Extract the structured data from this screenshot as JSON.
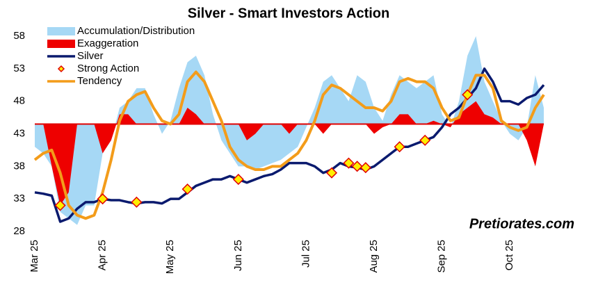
{
  "chart_data": {
    "type": "line",
    "title": "Silver - Smart Investors Action",
    "watermark": "Pretiorates.com",
    "categories": [
      "Mar 25",
      null,
      null,
      null,
      null,
      null,
      null,
      null,
      "Apr 25",
      null,
      null,
      null,
      null,
      null,
      null,
      null,
      "May 25",
      null,
      null,
      null,
      null,
      null,
      null,
      null,
      "Jun 25",
      null,
      null,
      null,
      null,
      null,
      null,
      null,
      "Jul 25",
      null,
      null,
      null,
      null,
      null,
      null,
      null,
      "Aug 25",
      null,
      null,
      null,
      null,
      null,
      null,
      null,
      "Sep 25",
      null,
      null,
      null,
      null,
      null,
      null,
      null,
      "Oct 25",
      null,
      null,
      null,
      null
    ],
    "ylim": [
      28,
      58
    ],
    "yticks": [
      28,
      33,
      38,
      43,
      48,
      53,
      58
    ],
    "reference_line": 44.5,
    "reference_color": "#e00000",
    "series": [
      {
        "name": "Accumulation/Distribution",
        "kind": "area",
        "color": "#a6d8f5",
        "values": [
          41,
          40,
          38,
          31,
          30,
          29,
          32,
          32,
          40,
          42,
          47,
          48,
          50,
          50,
          46,
          43,
          45,
          50,
          54,
          55,
          52,
          46,
          42,
          40,
          38,
          38,
          37.5,
          38,
          38.5,
          39,
          40,
          41,
          44,
          47,
          51,
          52,
          50,
          48,
          52,
          51,
          47,
          45,
          49,
          52,
          51,
          50,
          51,
          52,
          46,
          44,
          48,
          55,
          58,
          51,
          48,
          45,
          43,
          42,
          44,
          52,
          47
        ]
      },
      {
        "name": "Exaggeration",
        "kind": "area",
        "color": "#ee0000",
        "values": [
          44.5,
          44.5,
          38,
          32,
          34,
          44.5,
          44.5,
          44.5,
          40,
          42,
          46,
          46,
          44.5,
          44.5,
          44.5,
          44.5,
          44.5,
          44.5,
          47,
          46,
          44.5,
          44.5,
          44.5,
          44.5,
          44.5,
          42,
          43,
          44.5,
          44.5,
          44.5,
          43,
          44.5,
          44.5,
          44.5,
          43,
          44.5,
          44.5,
          44.5,
          44.5,
          44.5,
          43,
          44,
          44.5,
          46,
          46,
          44.5,
          44.5,
          45,
          44.5,
          44,
          46,
          47,
          48,
          46,
          45.5,
          44.5,
          44.5,
          44.5,
          42,
          38,
          44.5
        ]
      },
      {
        "name": "Silver",
        "kind": "line",
        "color": "#0a1a6e",
        "values": [
          34,
          33.8,
          33.5,
          29.5,
          30,
          31.5,
          32.5,
          32.5,
          33,
          32.8,
          32.8,
          32.5,
          32.3,
          32.5,
          32.5,
          32.3,
          33,
          33,
          34,
          35,
          35.5,
          36,
          36,
          36.5,
          36,
          35.5,
          36,
          36.5,
          36.8,
          37.5,
          38.5,
          38.5,
          38.5,
          38,
          37,
          37.5,
          38.5,
          38,
          37.8,
          37.5,
          38,
          39,
          40,
          41,
          41,
          41.5,
          42,
          42.5,
          44,
          46,
          47,
          48.5,
          50,
          53,
          51,
          48,
          48,
          47.5,
          48.5,
          49,
          50.5
        ]
      },
      {
        "name": "Strong Action",
        "kind": "marker",
        "color": "#ffee00",
        "stroke": "#e00000",
        "values": [
          null,
          null,
          null,
          32,
          null,
          null,
          null,
          null,
          33,
          null,
          null,
          null,
          32.5,
          null,
          null,
          null,
          null,
          null,
          34.5,
          null,
          null,
          null,
          null,
          null,
          36,
          null,
          null,
          null,
          null,
          null,
          null,
          null,
          null,
          null,
          null,
          37,
          null,
          38.5,
          38,
          37.8,
          null,
          null,
          null,
          41,
          null,
          null,
          42,
          null,
          null,
          null,
          null,
          49,
          null,
          null,
          null,
          null,
          null,
          null,
          null,
          null,
          null
        ]
      },
      {
        "name": "Tendency",
        "kind": "line",
        "color": "#f39c1a",
        "values": [
          39,
          40,
          40.5,
          37,
          32,
          30.5,
          30,
          30.5,
          34,
          39,
          45,
          48,
          49,
          49.5,
          47,
          45,
          44.5,
          46,
          51,
          52.5,
          51,
          48,
          45,
          41,
          39,
          38,
          37.5,
          37.5,
          38,
          38,
          39,
          40,
          42,
          45,
          49,
          50.5,
          50,
          49,
          48,
          47,
          47,
          46.5,
          48,
          51,
          51.5,
          51,
          51,
          50,
          47,
          45,
          45.5,
          49,
          52,
          52,
          50,
          45,
          44,
          43.5,
          44,
          47,
          49
        ]
      }
    ]
  }
}
